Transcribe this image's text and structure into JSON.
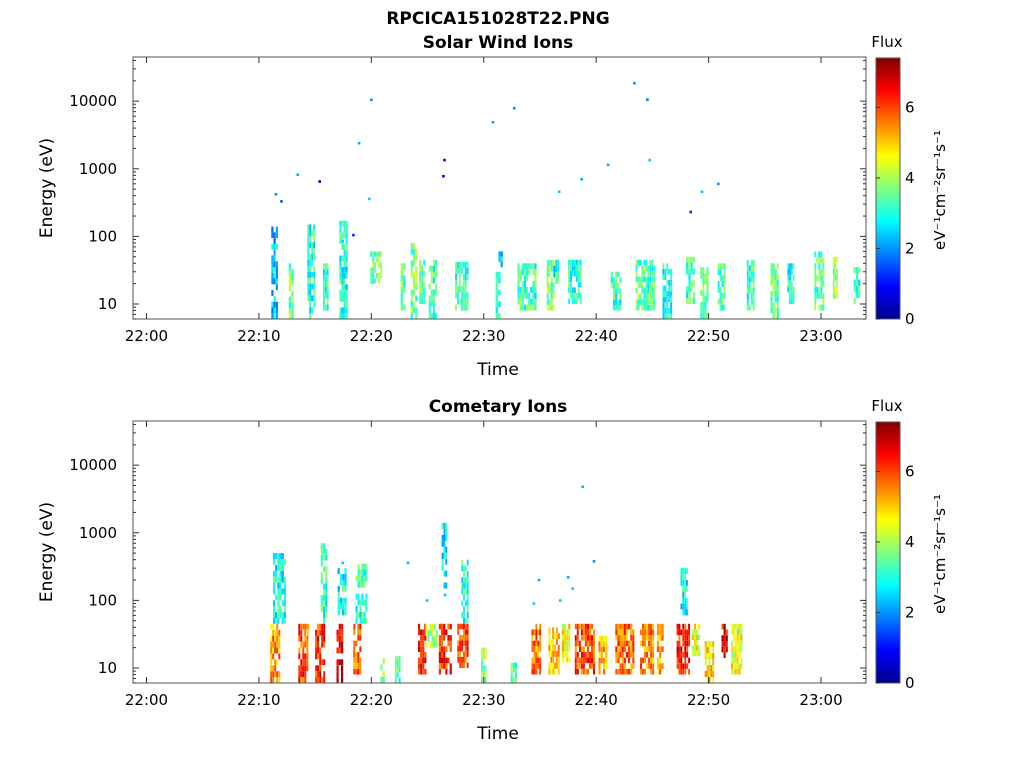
{
  "figure": {
    "title": "RPCICA151028T22.PNG"
  },
  "chart_data": [
    {
      "type": "heatmap",
      "title": "Solar Wind Ions",
      "xlabel": "Time",
      "ylabel": "Energy (eV)",
      "x_range": [
        "22:00",
        "23:02"
      ],
      "y_range": [
        6,
        45000
      ],
      "y_scale": "log",
      "x_ticks": [
        "22:00",
        "22:10",
        "22:20",
        "22:30",
        "22:40",
        "22:50",
        "23:00"
      ],
      "y_ticks": [
        "10",
        "100",
        "1000",
        "10000"
      ],
      "colorbar": {
        "label": "Flux",
        "unit_label": "eV⁻¹cm⁻²sr⁻¹s⁻¹",
        "range": [
          0,
          7.4
        ],
        "ticks": [
          "0",
          "2",
          "4",
          "6"
        ],
        "colormap": "jet"
      },
      "bursts": [
        {
          "t": [
            22.2,
            23.4
          ],
          "e": [
            6,
            140
          ],
          "f": 2.4
        },
        {
          "t": [
            25.3,
            26.2
          ],
          "e": [
            6,
            40
          ],
          "f": 3.5
        },
        {
          "t": [
            28.6,
            30.0
          ],
          "e": [
            6,
            150
          ],
          "f": 3.0
        },
        {
          "t": [
            31.4,
            32.4
          ],
          "e": [
            8,
            40
          ],
          "f": 3.2
        },
        {
          "t": [
            34.3,
            35.8
          ],
          "e": [
            6,
            170
          ],
          "f": 3.0
        },
        {
          "t": [
            39.8,
            41.9
          ],
          "e": [
            20,
            60
          ],
          "f": 3.6
        },
        {
          "t": [
            45.2,
            46.1
          ],
          "e": [
            8,
            40
          ],
          "f": 3.4
        },
        {
          "t": [
            47.0,
            48.2
          ],
          "e": [
            6,
            80
          ],
          "f": 3.5
        },
        {
          "t": [
            48.5,
            49.6
          ],
          "e": [
            10,
            45
          ],
          "f": 3.4
        },
        {
          "t": [
            50.2,
            51.7
          ],
          "e": [
            6,
            45
          ],
          "f": 3.2
        },
        {
          "t": [
            54.9,
            57.3
          ],
          "e": [
            8,
            42
          ],
          "f": 3.2
        },
        {
          "t": [
            62.1,
            63.0
          ],
          "e": [
            6,
            30
          ],
          "f": 3.3
        },
        {
          "t": [
            62.6,
            63.4
          ],
          "e": [
            35,
            60
          ],
          "f": 2.0
        },
        {
          "t": [
            66.0,
            69.4
          ],
          "e": [
            8,
            40
          ],
          "f": 3.2
        },
        {
          "t": [
            71.2,
            72.6
          ],
          "e": [
            8,
            45
          ],
          "f": 3.8
        },
        {
          "t": [
            72.4,
            73.4
          ],
          "e": [
            20,
            45
          ],
          "f": 3.0
        },
        {
          "t": [
            75.0,
            77.4
          ],
          "e": [
            10,
            45
          ],
          "f": 3.1
        },
        {
          "t": [
            82.6,
            84.5
          ],
          "e": [
            8,
            30
          ],
          "f": 3.2
        },
        {
          "t": [
            87.0,
            90.5
          ],
          "e": [
            8,
            45
          ],
          "f": 3.4
        },
        {
          "t": [
            91.8,
            93.5
          ],
          "e": [
            6,
            40
          ],
          "f": 3.0
        },
        {
          "t": [
            96.0,
            97.6
          ],
          "e": [
            10,
            50
          ],
          "f": 3.3
        },
        {
          "t": [
            98.5,
            100.0
          ],
          "e": [
            6,
            35
          ],
          "f": 3.3
        },
        {
          "t": [
            101.6,
            103.0
          ],
          "e": [
            8,
            40
          ],
          "f": 3.4
        },
        {
          "t": [
            106.8,
            108.2
          ],
          "e": [
            8,
            45
          ],
          "f": 3.2
        },
        {
          "t": [
            111.0,
            112.5
          ],
          "e": [
            6,
            40
          ],
          "f": 3.6
        },
        {
          "t": [
            114.0,
            115.3
          ],
          "e": [
            10,
            40
          ],
          "f": 3.0
        },
        {
          "t": [
            118.8,
            120.6
          ],
          "e": [
            8,
            60
          ],
          "f": 3.4
        },
        {
          "t": [
            122.1,
            123.0
          ],
          "e": [
            12,
            50
          ],
          "f": 3.8
        },
        {
          "t": [
            125.8,
            127.0
          ],
          "e": [
            10,
            35
          ],
          "f": 3.2
        }
      ],
      "points": [
        {
          "t": 23.0,
          "e": 420,
          "f": 2.0
        },
        {
          "t": 24.0,
          "e": 330,
          "f": 1.5
        },
        {
          "t": 26.9,
          "e": 820,
          "f": 2.2
        },
        {
          "t": 30.8,
          "e": 650,
          "f": 0.5
        },
        {
          "t": 34.9,
          "e": 85,
          "f": 2.4
        },
        {
          "t": 36.8,
          "e": 105,
          "f": 1.2
        },
        {
          "t": 37.8,
          "e": 2400,
          "f": 2.2
        },
        {
          "t": 40.0,
          "e": 10500,
          "f": 2.0
        },
        {
          "t": 39.6,
          "e": 360,
          "f": 2.4
        },
        {
          "t": 52.8,
          "e": 780,
          "f": 0.8
        },
        {
          "t": 53.0,
          "e": 1350,
          "f": 0.8
        },
        {
          "t": 61.6,
          "e": 4900,
          "f": 2.2
        },
        {
          "t": 65.4,
          "e": 7900,
          "f": 2.0
        },
        {
          "t": 73.4,
          "e": 460,
          "f": 2.4
        },
        {
          "t": 77.4,
          "e": 700,
          "f": 2.2
        },
        {
          "t": 82.1,
          "e": 1150,
          "f": 2.2
        },
        {
          "t": 86.8,
          "e": 18500,
          "f": 2.0
        },
        {
          "t": 89.1,
          "e": 10600,
          "f": 1.8
        },
        {
          "t": 89.5,
          "e": 1350,
          "f": 2.4
        },
        {
          "t": 96.8,
          "e": 230,
          "f": 1.2
        },
        {
          "t": 98.8,
          "e": 460,
          "f": 2.4
        },
        {
          "t": 101.7,
          "e": 600,
          "f": 2.0
        }
      ]
    },
    {
      "type": "heatmap",
      "title": "Cometary Ions",
      "xlabel": "Time",
      "ylabel": "Energy (eV)",
      "x_range": [
        "22:00",
        "23:02"
      ],
      "y_range": [
        6,
        45000
      ],
      "y_scale": "log",
      "x_ticks": [
        "22:00",
        "22:10",
        "22:20",
        "22:30",
        "22:40",
        "22:50",
        "23:00"
      ],
      "y_ticks": [
        "10",
        "100",
        "1000",
        "10000"
      ],
      "colorbar": {
        "label": "Flux",
        "unit_label": "eV⁻¹cm⁻²sr⁻¹s⁻¹",
        "range": [
          0,
          7.4
        ],
        "ticks": [
          "0",
          "2",
          "4",
          "6"
        ],
        "colormap": "jet"
      },
      "bursts": [
        {
          "t": [
            22.0,
            23.8
          ],
          "e": [
            6,
            45
          ],
          "f": 5.4
        },
        {
          "t": [
            22.5,
            24.8
          ],
          "e": [
            45,
            500
          ],
          "f": 2.9
        },
        {
          "t": [
            27.0,
            28.8
          ],
          "e": [
            6,
            45
          ],
          "f": 6.0
        },
        {
          "t": [
            28.0,
            29.0
          ],
          "e": [
            30,
            45
          ],
          "f": 4.5
        },
        {
          "t": [
            30.0,
            31.8
          ],
          "e": [
            6,
            45
          ],
          "f": 6.2
        },
        {
          "t": [
            31.0,
            32.2
          ],
          "e": [
            45,
            700
          ],
          "f": 3.2
        },
        {
          "t": [
            33.8,
            35.0
          ],
          "e": [
            6,
            45
          ],
          "f": 6.6
        },
        {
          "t": [
            34.0,
            35.6
          ],
          "e": [
            60,
            300
          ],
          "f": 2.8
        },
        {
          "t": [
            36.8,
            38.2
          ],
          "e": [
            8,
            45
          ],
          "f": 5.8
        },
        {
          "t": [
            37.2,
            39.3
          ],
          "e": [
            45,
            350
          ],
          "f": 3.2
        },
        {
          "t": [
            41.6,
            42.4
          ],
          "e": [
            6,
            14
          ],
          "f": 3.6
        },
        {
          "t": [
            44.2,
            45.2
          ],
          "e": [
            6,
            15
          ],
          "f": 3.2
        },
        {
          "t": [
            48.3,
            49.8
          ],
          "e": [
            8,
            45
          ],
          "f": 6.3
        },
        {
          "t": [
            49.6,
            51.8
          ],
          "e": [
            20,
            45
          ],
          "f": 4.0
        },
        {
          "t": [
            52.0,
            54.3
          ],
          "e": [
            8,
            45
          ],
          "f": 6.2
        },
        {
          "t": [
            52.5,
            53.5
          ],
          "e": [
            150,
            1400
          ],
          "f": 2.7
        },
        {
          "t": [
            55.3,
            57.3
          ],
          "e": [
            10,
            45
          ],
          "f": 6.0
        },
        {
          "t": [
            56.0,
            57.3
          ],
          "e": [
            45,
            400
          ],
          "f": 3.0
        },
        {
          "t": [
            59.5,
            60.5
          ],
          "e": [
            6,
            20
          ],
          "f": 4.0
        },
        {
          "t": [
            64.8,
            65.9
          ],
          "e": [
            6,
            12
          ],
          "f": 3.2
        },
        {
          "t": [
            68.5,
            70.2
          ],
          "e": [
            8,
            45
          ],
          "f": 5.6
        },
        {
          "t": [
            71.5,
            73.5
          ],
          "e": [
            8,
            40
          ],
          "f": 5.0
        },
        {
          "t": [
            73.9,
            75.4
          ],
          "e": [
            12,
            45
          ],
          "f": 4.6
        },
        {
          "t": [
            76.2,
            79.8
          ],
          "e": [
            8,
            45
          ],
          "f": 6.0
        },
        {
          "t": [
            80.4,
            82.0
          ],
          "e": [
            8,
            30
          ],
          "f": 5.0
        },
        {
          "t": [
            83.4,
            86.8
          ],
          "e": [
            8,
            45
          ],
          "f": 5.7
        },
        {
          "t": [
            87.8,
            90.3
          ],
          "e": [
            8,
            45
          ],
          "f": 5.5
        },
        {
          "t": [
            90.8,
            92.0
          ],
          "e": [
            8,
            45
          ],
          "f": 5.2
        },
        {
          "t": [
            94.3,
            96.7
          ],
          "e": [
            8,
            45
          ],
          "f": 6.3
        },
        {
          "t": [
            95.0,
            96.3
          ],
          "e": [
            60,
            300
          ],
          "f": 2.8
        },
        {
          "t": [
            97.0,
            98.5
          ],
          "e": [
            15,
            45
          ],
          "f": 4.5
        },
        {
          "t": [
            99.3,
            101.0
          ],
          "e": [
            6,
            25
          ],
          "f": 4.8
        },
        {
          "t": [
            102.3,
            103.4
          ],
          "e": [
            14,
            45
          ],
          "f": 6.6
        },
        {
          "t": [
            104.0,
            106.0
          ],
          "e": [
            8,
            45
          ],
          "f": 4.5
        }
      ],
      "points": [
        {
          "t": 34.9,
          "e": 360,
          "f": 2.4
        },
        {
          "t": 46.5,
          "e": 360,
          "f": 2.2
        },
        {
          "t": 49.9,
          "e": 100,
          "f": 2.4
        },
        {
          "t": 53.1,
          "e": 120,
          "f": 2.4
        },
        {
          "t": 68.9,
          "e": 90,
          "f": 2.4
        },
        {
          "t": 69.8,
          "e": 200,
          "f": 2.2
        },
        {
          "t": 73.6,
          "e": 100,
          "f": 2.4
        },
        {
          "t": 75.8,
          "e": 150,
          "f": 2.4
        },
        {
          "t": 77.6,
          "e": 4800,
          "f": 2.2
        },
        {
          "t": 79.6,
          "e": 380,
          "f": 2.0
        },
        {
          "t": 75.0,
          "e": 220,
          "f": 2.2
        }
      ]
    }
  ]
}
